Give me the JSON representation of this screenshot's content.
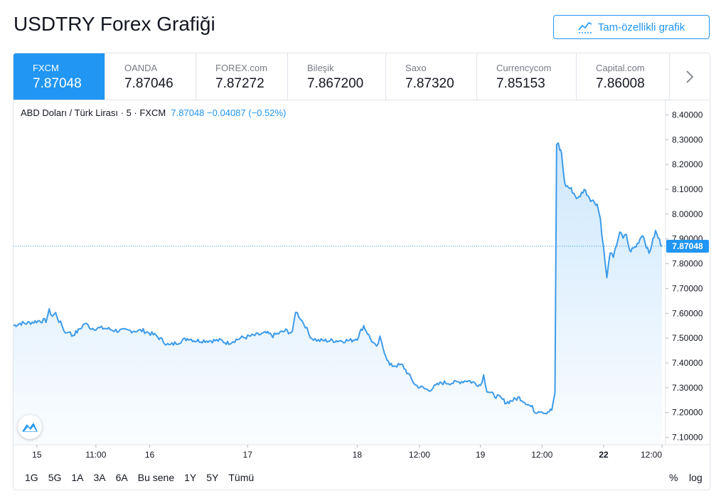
{
  "page": {
    "title": "USDTRY Forex Grafiği",
    "full_chart_button": "Tam-özellikli grafik",
    "full_chart_icon": "chart-line-icon"
  },
  "tabs": [
    {
      "name": "FXCM",
      "price": "7.87048",
      "active": true
    },
    {
      "name": "OANDA",
      "price": "7.87046",
      "active": false
    },
    {
      "name": "FOREX.com",
      "price": "7.87272",
      "active": false
    },
    {
      "name": "Bileşik",
      "price": "7.867200",
      "active": false
    },
    {
      "name": "Saxo",
      "price": "7.87320",
      "active": false
    },
    {
      "name": "Currencycom",
      "price": "7.85153",
      "active": false
    },
    {
      "name": "Capital.com",
      "price": "7.86008",
      "active": false
    }
  ],
  "tabs_next_icon": "chevron-right-icon",
  "legend": {
    "symbol": "ABD Doları / Türk Lirası · 5 · FXCM",
    "last": "7.87048",
    "change": "−0.04087 (−0.52%)"
  },
  "chart_logo_icon": "tradingview-logo-icon",
  "ranges": [
    "1G",
    "5G",
    "1A",
    "3A",
    "6A",
    "Bu sene",
    "1Y",
    "5Y",
    "Tümü"
  ],
  "scale_options": [
    "%",
    "log"
  ],
  "colors": {
    "accent": "#2196f3",
    "line": "#3d9be9",
    "grid_text": "#131722"
  },
  "chart_data": {
    "type": "area",
    "ylim": [
      7.07,
      8.43
    ],
    "y_ticks": [
      "8.40000",
      "8.30000",
      "8.20000",
      "8.10000",
      "8.00000",
      "7.90000",
      "7.80000",
      "7.70000",
      "7.60000",
      "7.50000",
      "7.40000",
      "7.30000",
      "7.20000",
      "7.10000"
    ],
    "x_tick_labels": [
      "15",
      "11:00",
      "16",
      "17",
      "18",
      "12:00",
      "19",
      "12:00",
      "22",
      "12:00"
    ],
    "x_tick_positions": [
      0.036,
      0.127,
      0.21,
      0.361,
      0.53,
      0.626,
      0.72,
      0.815,
      0.91,
      1.0
    ],
    "last_value_label": "7.87048",
    "last_value": 7.87048,
    "series": [
      {
        "x": [
          0,
          0.01,
          0.02,
          0.04,
          0.05,
          0.055,
          0.06,
          0.065,
          0.07,
          0.075,
          0.08,
          0.085,
          0.09,
          0.1,
          0.11,
          0.115,
          0.12,
          0.14,
          0.16,
          0.18,
          0.2,
          0.22,
          0.24,
          0.26,
          0.27,
          0.28,
          0.3,
          0.32,
          0.33,
          0.35,
          0.37,
          0.39,
          0.4,
          0.42,
          0.43,
          0.435,
          0.44,
          0.445,
          0.45,
          0.455,
          0.46,
          0.47,
          0.49,
          0.5,
          0.52,
          0.53,
          0.54,
          0.55,
          0.555,
          0.56,
          0.565,
          0.57,
          0.58,
          0.6,
          0.62,
          0.64,
          0.66,
          0.68,
          0.7,
          0.71,
          0.72,
          0.725,
          0.73,
          0.74,
          0.75,
          0.76,
          0.77,
          0.78,
          0.79,
          0.8,
          0.805,
          0.81,
          0.82,
          0.83,
          0.835,
          0.84,
          0.8425,
          0.845,
          0.85,
          0.86,
          0.87,
          0.88,
          0.89,
          0.9,
          0.905,
          0.91,
          0.915,
          0.92,
          0.925,
          0.93,
          0.935,
          0.94,
          0.945,
          0.95,
          0.96,
          0.97,
          0.98,
          0.99,
          1.0
        ],
        "values": [
          7.55,
          7.56,
          7.56,
          7.57,
          7.57,
          7.61,
          7.59,
          7.6,
          7.57,
          7.55,
          7.52,
          7.53,
          7.51,
          7.53,
          7.56,
          7.55,
          7.54,
          7.54,
          7.53,
          7.53,
          7.53,
          7.51,
          7.47,
          7.49,
          7.5,
          7.49,
          7.49,
          7.49,
          7.48,
          7.5,
          7.51,
          7.52,
          7.51,
          7.53,
          7.52,
          7.61,
          7.59,
          7.57,
          7.55,
          7.52,
          7.5,
          7.49,
          7.49,
          7.49,
          7.49,
          7.5,
          7.55,
          7.5,
          7.48,
          7.46,
          7.5,
          7.46,
          7.39,
          7.39,
          7.31,
          7.29,
          7.32,
          7.32,
          7.33,
          7.32,
          7.31,
          7.35,
          7.29,
          7.27,
          7.26,
          7.24,
          7.25,
          7.26,
          7.24,
          7.22,
          7.2,
          7.21,
          7.2,
          7.21,
          7.28,
          8.28,
          8.26,
          8.25,
          8.12,
          8.1,
          8.06,
          8.1,
          8.06,
          8.04,
          7.98,
          7.86,
          7.74,
          7.85,
          7.82,
          7.88,
          7.93,
          7.9,
          7.92,
          7.85,
          7.87,
          7.92,
          7.84,
          7.93,
          7.87
        ]
      }
    ]
  }
}
